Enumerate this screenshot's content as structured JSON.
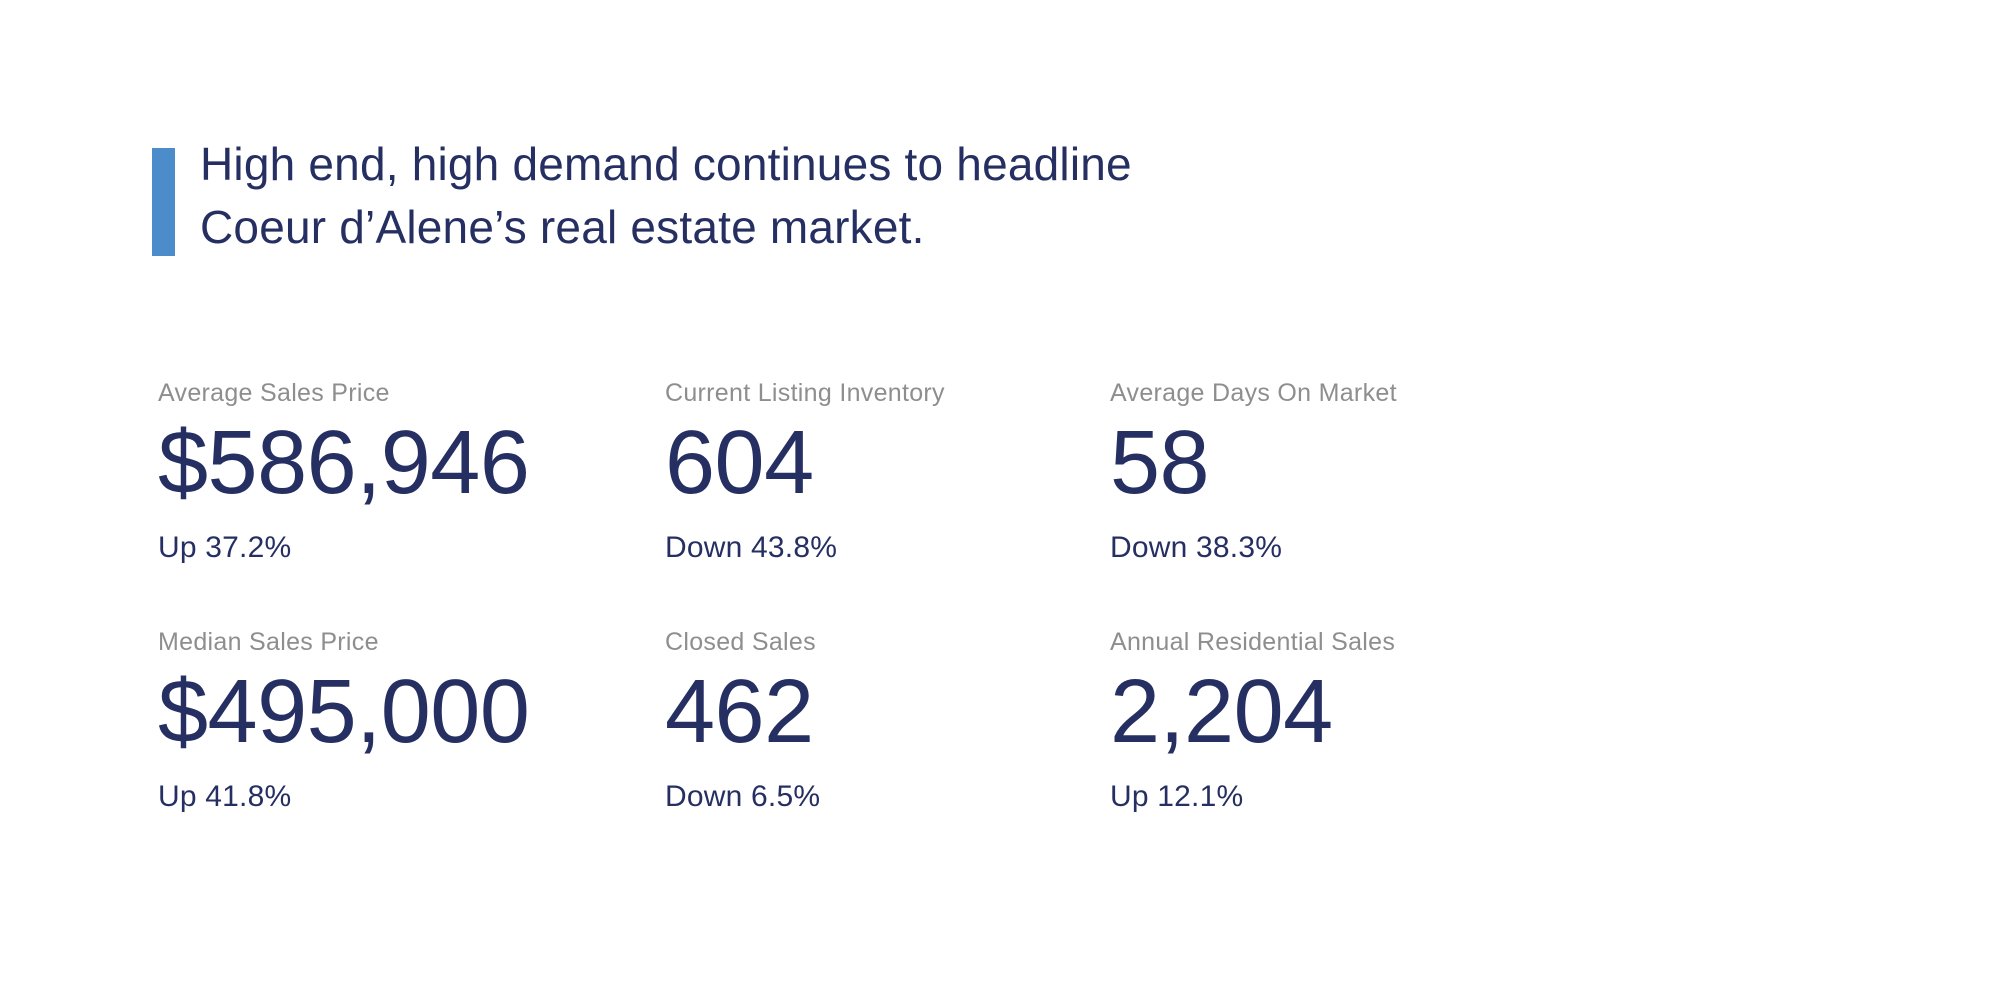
{
  "headline": {
    "line1": "High end, high demand continues to headline",
    "line2": "Coeur d’Alene’s real estate market."
  },
  "colors": {
    "navy_text": "#262f62",
    "label_gray": "#8e8e8e",
    "accent_blue": "#4c8ccb",
    "background": "#ffffff"
  },
  "stats": [
    {
      "label": "Average Sales Price",
      "value": "$586,946",
      "change": "Up 37.2%"
    },
    {
      "label": "Current Listing Inventory",
      "value": "604",
      "change": "Down 43.8%"
    },
    {
      "label": "Average Days On Market",
      "value": "58",
      "change": "Down 38.3%"
    },
    {
      "label": "Median Sales Price",
      "value": "$495,000",
      "change": "Up 41.8%"
    },
    {
      "label": "Closed Sales",
      "value": "462",
      "change": "Down 6.5%"
    },
    {
      "label": "Annual Residential Sales",
      "value": "2,204",
      "change": "Up 12.1%"
    }
  ]
}
